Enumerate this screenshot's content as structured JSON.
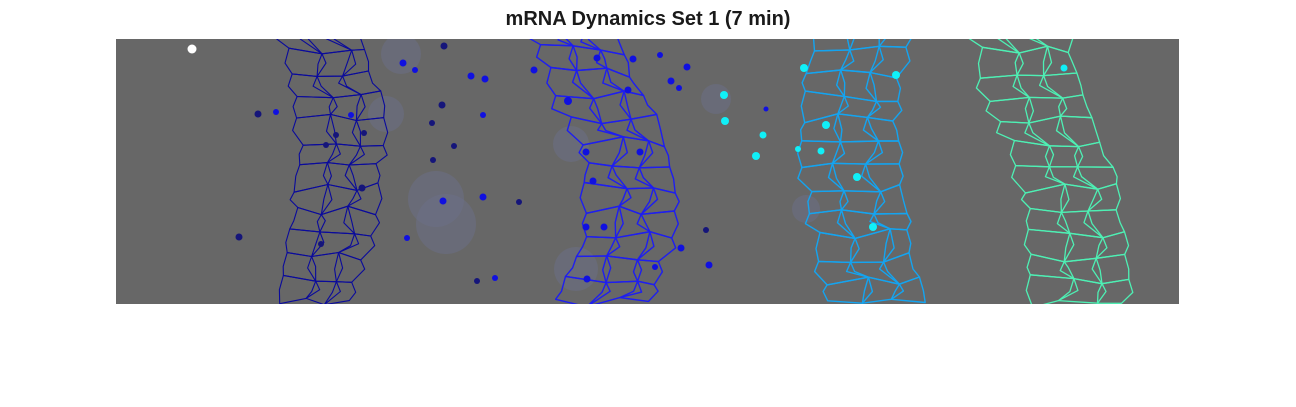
{
  "figure": {
    "title": "mRNA Dynamics Set 1 (7 min)"
  },
  "colors": {
    "background": "#ffffff",
    "panel": "#676767",
    "cells_stage_1": "#0a0a9c",
    "cells_stage_2": "#1e1ef0",
    "cells_stage_3": "#14a4f0",
    "cells_stage_4": "#4ef0b4",
    "dots_dark": "#15157a",
    "dots_blue": "#1010e0",
    "dots_cyan": "#10f0f8",
    "dots_white": "#ffffff",
    "blur": "#6c6f86"
  }
}
